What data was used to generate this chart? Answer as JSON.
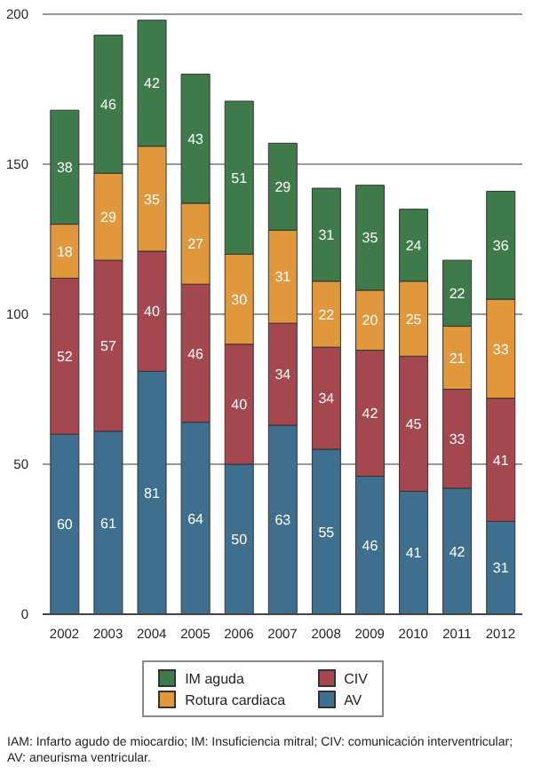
{
  "chart_data": {
    "type": "bar",
    "stacked": true,
    "categories": [
      "2002",
      "2003",
      "2004",
      "2005",
      "2006",
      "2007",
      "2008",
      "2009",
      "2010",
      "2011",
      "2012"
    ],
    "series": [
      {
        "name": "AV",
        "color": "#3f6f8f",
        "values": [
          60,
          61,
          81,
          64,
          50,
          63,
          55,
          46,
          41,
          42,
          31
        ]
      },
      {
        "name": "CIV",
        "color": "#a5474f",
        "values": [
          52,
          57,
          40,
          46,
          40,
          34,
          34,
          42,
          45,
          33,
          41
        ]
      },
      {
        "name": "Rotura cardiaca",
        "color": "#e1973b",
        "values": [
          18,
          29,
          35,
          27,
          30,
          31,
          22,
          20,
          25,
          21,
          33
        ]
      },
      {
        "name": "IM aguda",
        "color": "#3f7a4b",
        "values": [
          38,
          46,
          42,
          43,
          51,
          29,
          31,
          35,
          24,
          22,
          36
        ]
      }
    ],
    "ylim": [
      0,
      200
    ],
    "yticks": [
      0,
      50,
      100,
      150,
      200
    ],
    "grid": "y",
    "data_labels": true,
    "legend": "bottom",
    "annotations": [
      "IAM: Infarto agudo de miocardio; IM: Insuficiencia mitral; CIV: comunicación interventricular; AV: aneurisma ventricular."
    ]
  }
}
